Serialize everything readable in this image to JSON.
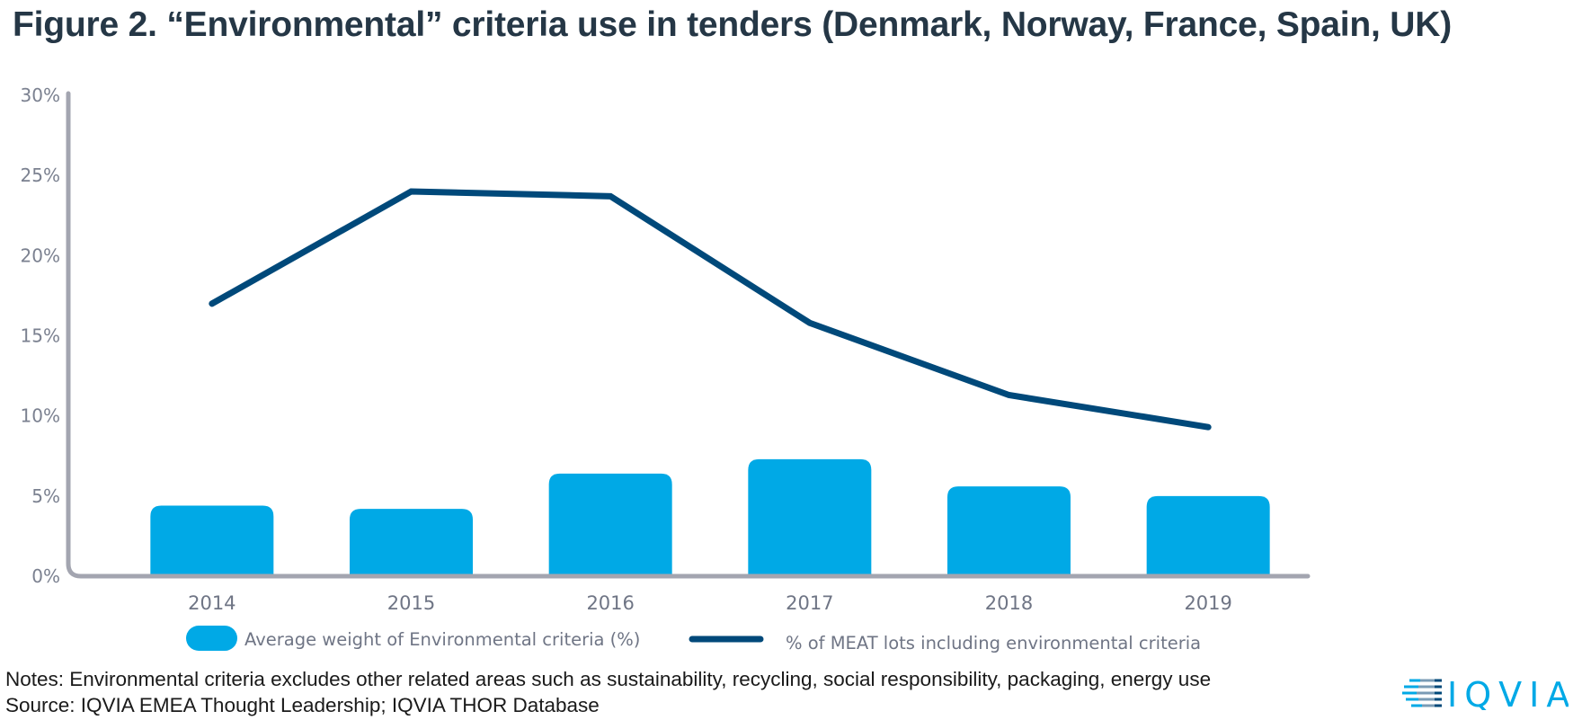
{
  "title": "Figure 2. “Environmental” criteria use in tenders (Denmark, Norway, France, Spain, UK)",
  "notes": "Notes: Environmental criteria excludes other related areas such as sustainability, recycling, social responsibility, packaging, energy use",
  "source": "Source: IQVIA EMEA Thought Leadership; IQVIA THOR Database",
  "logo": {
    "text": "IQVIA",
    "name": "iqvia-logo"
  },
  "colors": {
    "bar": "#00a9e6",
    "line": "#00497a",
    "axis": "#a3a5b0",
    "title": "#253746"
  },
  "chart_data": {
    "type": "bar",
    "title": "Figure 2. “Environmental” criteria use in tenders (Denmark, Norway, France, Spain, UK)",
    "xlabel": "",
    "ylabel": "",
    "categories": [
      "2014",
      "2015",
      "2016",
      "2017",
      "2018",
      "2019"
    ],
    "ylim": [
      0,
      30
    ],
    "yticks": [
      "0%",
      "5%",
      "10%",
      "15%",
      "20%",
      "25%",
      "30%"
    ],
    "ytick_values": [
      0,
      5,
      10,
      15,
      20,
      25,
      30
    ],
    "grid": false,
    "legend_position": "bottom",
    "series": [
      {
        "name": "Average weight of Environmental criteria (%)",
        "type": "bar",
        "values": [
          4.4,
          4.2,
          6.4,
          7.3,
          5.6,
          5.0
        ]
      },
      {
        "name": "% of MEAT lots including environmental criteria",
        "type": "line",
        "values": [
          17.0,
          24.0,
          23.7,
          15.8,
          11.3,
          9.3
        ]
      }
    ]
  }
}
